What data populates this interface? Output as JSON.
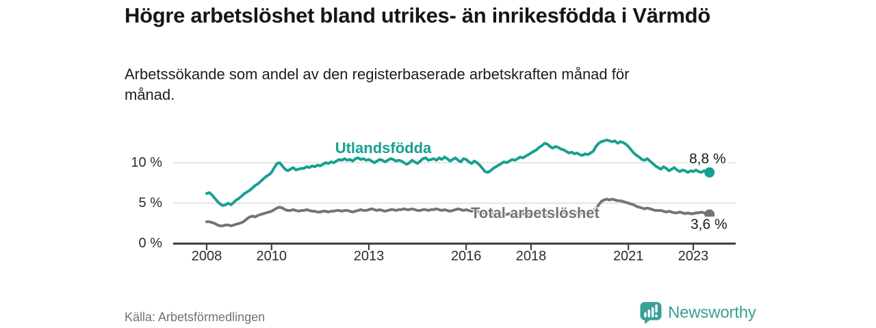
{
  "chart_data": {
    "type": "line",
    "title": "Högre arbetslöshet bland utrikes- än inrikesfödda i Värmdö",
    "subtitle": "Arbetssökande som andel av den registerbaserade arbetskraften månad för månad.",
    "source": "Källa: Arbetsförmedlingen",
    "unit": "%",
    "frequency": "monthly",
    "x_start": "2008-01",
    "x_end": "2023-07",
    "ylim": [
      0,
      13.5
    ],
    "grid": "horizontal",
    "legend_position": "inline-labels",
    "colors": {
      "axis": "#3f3f3f",
      "gridline": "#d9d9d9",
      "tick_text": "#2b2b2b",
      "value_text": "#1a1a1a"
    },
    "y_ticks": [
      {
        "value": 0,
        "label": "0 %"
      },
      {
        "value": 5,
        "label": "5 %"
      },
      {
        "value": 10,
        "label": "10 %"
      }
    ],
    "x_ticks": [
      {
        "year": 2008,
        "label": "2008"
      },
      {
        "year": 2010,
        "label": "2010"
      },
      {
        "year": 2013,
        "label": "2013"
      },
      {
        "year": 2016,
        "label": "2016"
      },
      {
        "year": 2018,
        "label": "2018"
      },
      {
        "year": 2021,
        "label": "2021"
      },
      {
        "year": 2023,
        "label": "2023"
      }
    ],
    "series": [
      {
        "name": "Utlandsfödda",
        "color": "#16a091",
        "end_label": "8,8 %",
        "end_value": 8.8,
        "values": [
          6.2,
          6.3,
          6.0,
          5.6,
          5.2,
          4.9,
          4.7,
          4.8,
          5.0,
          4.8,
          5.1,
          5.4,
          5.6,
          5.9,
          6.2,
          6.4,
          6.6,
          6.9,
          7.2,
          7.4,
          7.7,
          8.0,
          8.3,
          8.5,
          8.8,
          9.4,
          9.9,
          10.0,
          9.6,
          9.2,
          9.0,
          9.2,
          9.4,
          9.1,
          9.2,
          9.3,
          9.3,
          9.5,
          9.4,
          9.6,
          9.5,
          9.7,
          9.6,
          9.8,
          10.0,
          9.9,
          10.1,
          10.0,
          10.2,
          10.4,
          10.3,
          10.5,
          10.3,
          10.4,
          10.2,
          10.5,
          10.6,
          10.4,
          10.5,
          10.3,
          10.4,
          10.2,
          10.0,
          10.2,
          10.4,
          10.3,
          10.1,
          10.3,
          10.5,
          10.4,
          10.2,
          10.3,
          10.2,
          10.0,
          9.8,
          10.0,
          10.3,
          10.1,
          9.9,
          10.2,
          10.5,
          10.6,
          10.3,
          10.4,
          10.5,
          10.3,
          10.6,
          10.4,
          10.7,
          10.5,
          10.2,
          10.4,
          10.6,
          10.3,
          10.1,
          10.5,
          10.4,
          10.1,
          9.9,
          10.2,
          10.0,
          9.7,
          9.3,
          8.9,
          8.8,
          9.0,
          9.3,
          9.5,
          9.7,
          9.9,
          10.1,
          10.0,
          10.2,
          10.4,
          10.3,
          10.5,
          10.7,
          10.6,
          10.8,
          11.0,
          11.2,
          11.4,
          11.6,
          11.9,
          12.1,
          12.4,
          12.3,
          12.0,
          11.8,
          12.0,
          11.9,
          11.7,
          11.6,
          11.4,
          11.2,
          11.3,
          11.1,
          11.2,
          11.0,
          10.9,
          11.1,
          11.0,
          11.2,
          11.4,
          12.0,
          12.4,
          12.6,
          12.7,
          12.8,
          12.7,
          12.6,
          12.7,
          12.4,
          12.6,
          12.5,
          12.3,
          12.0,
          11.6,
          11.2,
          10.9,
          10.7,
          10.4,
          10.3,
          10.5,
          10.2,
          9.9,
          9.6,
          9.4,
          9.2,
          9.5,
          9.3,
          9.0,
          9.2,
          9.4,
          9.1,
          8.9,
          9.1,
          9.0,
          8.8,
          9.0,
          8.9,
          9.1,
          8.9,
          8.8,
          9.0,
          8.9,
          8.8
        ]
      },
      {
        "name": "Total arbetslöshet",
        "color": "#73737b",
        "end_label": "3,6 %",
        "end_value": 3.6,
        "values": [
          2.7,
          2.7,
          2.6,
          2.5,
          2.3,
          2.2,
          2.2,
          2.3,
          2.3,
          2.2,
          2.3,
          2.4,
          2.5,
          2.6,
          2.8,
          3.1,
          3.3,
          3.4,
          3.3,
          3.5,
          3.6,
          3.7,
          3.8,
          3.9,
          4.0,
          4.2,
          4.4,
          4.5,
          4.4,
          4.2,
          4.1,
          4.1,
          4.2,
          4.1,
          4.0,
          4.1,
          4.1,
          4.2,
          4.1,
          4.0,
          4.0,
          3.9,
          3.9,
          4.0,
          4.0,
          3.9,
          4.0,
          4.0,
          4.1,
          4.1,
          4.0,
          4.1,
          4.1,
          4.0,
          3.9,
          4.0,
          4.1,
          4.2,
          4.1,
          4.1,
          4.2,
          4.3,
          4.2,
          4.1,
          4.2,
          4.1,
          4.0,
          4.1,
          4.2,
          4.2,
          4.1,
          4.2,
          4.2,
          4.3,
          4.2,
          4.2,
          4.3,
          4.2,
          4.1,
          4.1,
          4.2,
          4.2,
          4.1,
          4.2,
          4.2,
          4.3,
          4.2,
          4.1,
          4.2,
          4.1,
          4.0,
          4.1,
          4.2,
          4.3,
          4.2,
          4.1,
          4.2,
          4.1,
          4.0,
          4.1,
          4.0,
          3.9,
          3.8,
          3.8,
          3.9,
          3.8,
          3.7,
          3.6,
          3.6,
          3.7,
          3.7,
          3.6,
          3.7,
          3.6,
          3.5,
          3.6,
          3.7,
          3.7,
          3.6,
          3.7,
          3.7,
          3.8,
          3.7,
          3.6,
          3.6,
          3.5,
          3.5,
          3.6,
          3.7,
          3.6,
          3.6,
          3.7,
          3.8,
          3.8,
          3.7,
          3.8,
          3.9,
          3.8,
          3.7,
          3.8,
          3.9,
          3.9,
          4.0,
          4.1,
          4.3,
          4.8,
          5.2,
          5.4,
          5.5,
          5.4,
          5.5,
          5.4,
          5.3,
          5.3,
          5.2,
          5.1,
          5.0,
          4.9,
          4.8,
          4.6,
          4.5,
          4.4,
          4.3,
          4.4,
          4.3,
          4.2,
          4.1,
          4.1,
          4.1,
          4.0,
          3.9,
          4.0,
          3.9,
          3.8,
          3.8,
          3.9,
          3.8,
          3.7,
          3.8,
          3.7,
          3.7,
          3.8,
          3.8,
          3.9,
          3.8,
          3.7,
          3.6
        ]
      }
    ]
  },
  "footer": {
    "brand": "Newsworthy",
    "brand_color": "#3aa096"
  }
}
